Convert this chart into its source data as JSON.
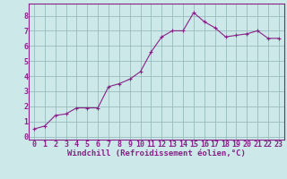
{
  "x": [
    0,
    1,
    2,
    3,
    4,
    5,
    6,
    7,
    8,
    9,
    10,
    11,
    12,
    13,
    14,
    15,
    16,
    17,
    18,
    19,
    20,
    21,
    22,
    23
  ],
  "y": [
    0.5,
    0.7,
    1.4,
    1.5,
    1.9,
    1.9,
    1.9,
    3.3,
    3.5,
    3.8,
    4.3,
    5.6,
    6.6,
    7.0,
    7.0,
    8.2,
    7.6,
    7.2,
    6.6,
    6.7,
    6.8,
    7.0,
    6.5,
    6.5
  ],
  "line_color": "#882288",
  "marker": "+",
  "bg_color": "#cce8e8",
  "grid_color": "#99bbbb",
  "xlabel": "Windchill (Refroidissement éolien,°C)",
  "xlabel_color": "#882288",
  "tick_color": "#882288",
  "spine_color": "#882288",
  "ylim": [
    -0.2,
    8.8
  ],
  "xlim": [
    -0.5,
    23.5
  ],
  "yticks": [
    0,
    1,
    2,
    3,
    4,
    5,
    6,
    7,
    8
  ],
  "xticks": [
    0,
    1,
    2,
    3,
    4,
    5,
    6,
    7,
    8,
    9,
    10,
    11,
    12,
    13,
    14,
    15,
    16,
    17,
    18,
    19,
    20,
    21,
    22,
    23
  ],
  "xlabel_fontsize": 6.5,
  "tick_fontsize": 6.0,
  "line_width": 0.8,
  "marker_size": 3.5
}
